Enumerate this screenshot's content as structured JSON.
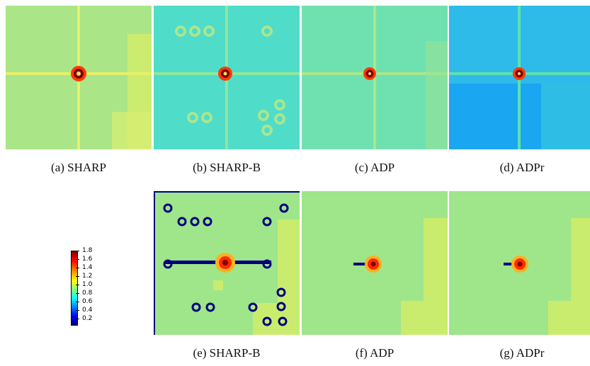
{
  "captions": {
    "a": "(a)  SHARP",
    "b": "(b)  SHARP-B",
    "c": "(c)  ADP",
    "d": "(d)  ADPr",
    "e": "(e)  SHARP-B",
    "f": "(f)  ADP",
    "g": "(g)  ADPr"
  },
  "colorbar": {
    "ticks": [
      "1.8",
      "1.6",
      "1.4",
      "1.2",
      "1.0",
      "0.8",
      "0.6",
      "0.4",
      "0.2"
    ],
    "colormap": "jet"
  },
  "colors": {
    "low": "#00007f",
    "mid": "#80ff80",
    "high": "#7f0000"
  }
}
